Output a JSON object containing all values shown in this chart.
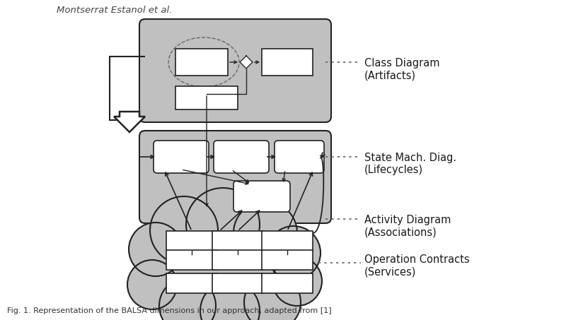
{
  "title_text": "Montserrat Estanol et al.",
  "label1": "Class Diagram\n(Artifacts)",
  "label2": "State Mach. Diag.\n(Lifecycles)",
  "label3": "Activity Diagram\n(Associations)",
  "label4": "Operation Contracts\n(Services)",
  "bg_color": "#c0c0c0",
  "box_fill": "#ffffff",
  "box_edge": "#222222",
  "arrow_color": "#222222",
  "text_color": "#1a1a1a",
  "font_size_label": 10.5,
  "font_size_title": 9.5,
  "fig_caption": "Fig. 1. Representation of the BALSA dimensions in our approach, adapted from [1]",
  "fig_caption_size": 8.0
}
